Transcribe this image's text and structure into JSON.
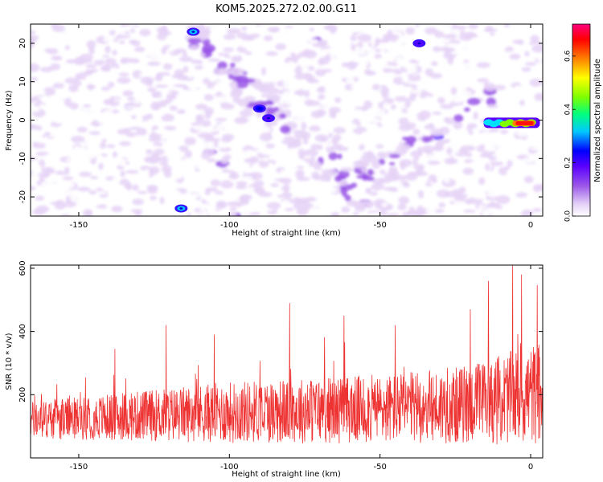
{
  "title": "KOM5.2025.272.02.00.G11",
  "chart_data": [
    {
      "type": "heatmap",
      "title": "KOM5.2025.272.02.00.G11",
      "xlabel": "Height of straight line (km)",
      "ylabel": "Frequency (Hz)",
      "xlim": [
        -166,
        4
      ],
      "ylim": [
        -25,
        25
      ],
      "x_ticks": [
        -150,
        -100,
        -50,
        0
      ],
      "x_tick_labels": [
        "-150",
        "-100",
        "-50",
        "0"
      ],
      "y_ticks": [
        -20,
        -10,
        0,
        10,
        20
      ],
      "y_tick_labels": [
        "-20",
        "-10",
        "0",
        "10",
        "20"
      ],
      "colorbar": {
        "label": "Normalized spectral amplitude",
        "range": [
          0,
          0.72
        ],
        "ticks": [
          0.0,
          0.2,
          0.4,
          0.6
        ],
        "tick_labels": [
          "0.0",
          "0.2",
          "0.4",
          "0.6"
        ],
        "colormap": [
          "#ffffff",
          "#e6d4f7",
          "#9a55e8",
          "#5a00ff",
          "#0000ff",
          "#00c8ff",
          "#00ff7f",
          "#7fff00",
          "#ffff00",
          "#ff8000",
          "#ff0000",
          "#ff0080"
        ]
      },
      "features": [
        {
          "name": "strong-line-0Hz",
          "x_range": [
            -14,
            2
          ],
          "frequency": -0.8,
          "peak_amplitude": 0.72
        },
        {
          "name": "diagonal-band-descending",
          "from": [
            -110,
            20
          ],
          "to": [
            -58,
            -18
          ]
        },
        {
          "name": "diagonal-band-ascending",
          "from": [
            -60,
            -18
          ],
          "to": [
            -15,
            5
          ]
        },
        {
          "name": "hotspot",
          "x": -112,
          "frequency": 23,
          "amplitude": 0.3
        },
        {
          "name": "hotspot",
          "x": -116,
          "frequency": -23,
          "amplitude": 0.3
        },
        {
          "name": "hotspot",
          "x": -90,
          "frequency": 3,
          "amplitude": 0.25
        },
        {
          "name": "hotspot",
          "x": -87,
          "frequency": 0.5,
          "amplitude": 0.22
        },
        {
          "name": "hotspot",
          "x": -37,
          "frequency": 20,
          "amplitude": 0.2
        }
      ]
    },
    {
      "type": "line",
      "xlabel": "Height of straight line (km)",
      "ylabel": "SNR (10 * v/v)",
      "xlim": [
        -166,
        4
      ],
      "ylim": [
        0,
        610
      ],
      "x_ticks": [
        -150,
        -100,
        -50,
        0
      ],
      "x_tick_labels": [
        "-150",
        "-100",
        "-50",
        "0"
      ],
      "y_ticks": [
        200,
        400,
        600
      ],
      "y_tick_labels": [
        "200",
        "400",
        "600"
      ],
      "series": [
        {
          "name": "SNR",
          "color": "#ee3333",
          "envelope": {
            "x": [
              -166,
              -150,
              -125,
              -100,
              -75,
              -50,
              -25,
              -10,
              0,
              4
            ],
            "baseline": [
              120,
              125,
              135,
              145,
              150,
              155,
              165,
              185,
              200,
              210
            ],
            "spread": [
              80,
              90,
              110,
              130,
              140,
              145,
              160,
              190,
              210,
              220
            ]
          },
          "peaks": [
            {
              "x": -138,
              "y": 345
            },
            {
              "x": -121,
              "y": 420
            },
            {
              "x": -105,
              "y": 390
            },
            {
              "x": -80,
              "y": 490
            },
            {
              "x": -62,
              "y": 450
            },
            {
              "x": -45,
              "y": 420
            },
            {
              "x": -20,
              "y": 470
            },
            {
              "x": -14,
              "y": 560
            },
            {
              "x": -6,
              "y": 620
            },
            {
              "x": -3,
              "y": 580
            }
          ]
        }
      ]
    }
  ]
}
